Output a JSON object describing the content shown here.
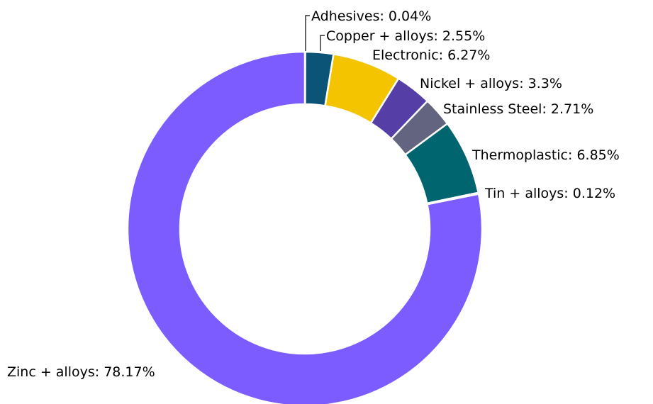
{
  "chart_data": {
    "type": "pie",
    "style": "donut",
    "title": "",
    "slices": [
      {
        "label": "Adhesives",
        "display": "Adhesives: 0.04%",
        "value": 0.04,
        "color": "#1f4e79"
      },
      {
        "label": "Copper + alloys",
        "display": "Copper + alloys: 2.55%",
        "value": 2.55,
        "color": "#0b5478"
      },
      {
        "label": "Electronic",
        "display": "Electronic: 6.27%",
        "value": 6.27,
        "color": "#f5c400"
      },
      {
        "label": "Nickel + alloys",
        "display": "Nickel + alloys: 3.3%",
        "value": 3.3,
        "color": "#553ea6"
      },
      {
        "label": "Stainless Steel",
        "display": "Stainless Steel: 2.71%",
        "value": 2.71,
        "color": "#636580"
      },
      {
        "label": "Thermoplastic",
        "display": "Thermoplastic: 6.85%",
        "value": 6.85,
        "color": "#016570"
      },
      {
        "label": "Tin + alloys",
        "display": "Tin + alloys: 0.12%",
        "value": 0.12,
        "color": "#0a4a6b"
      },
      {
        "label": "Zinc + alloys",
        "display": "Zinc + alloys: 78.17%",
        "value": 78.17,
        "color": "#7d5cff"
      }
    ]
  }
}
